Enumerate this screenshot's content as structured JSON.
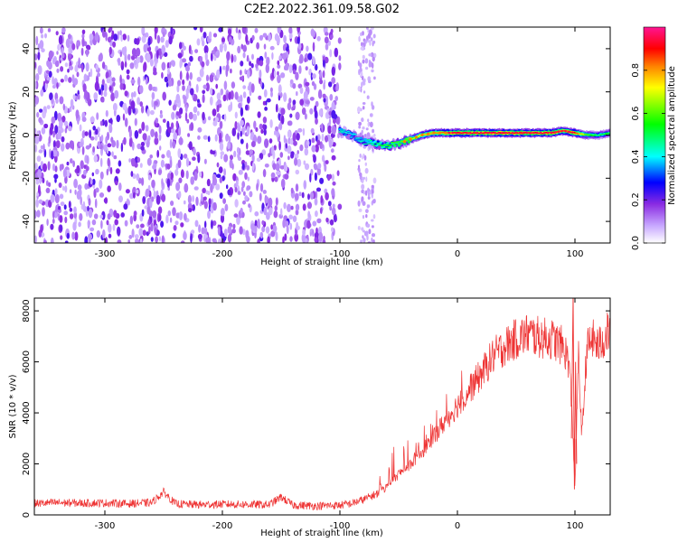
{
  "title": "C2E2.2022.361.09.58.G02",
  "chart_data": [
    {
      "type": "heatmap",
      "xlabel": "Height of straight line (km)",
      "ylabel": "Frequency (Hz)",
      "xlim": [
        -360,
        130
      ],
      "ylim": [
        -50,
        50
      ],
      "xticks": [
        -300,
        -200,
        -100,
        0,
        100
      ],
      "yticks": [
        -40,
        -20,
        0,
        20,
        40
      ],
      "colorbar": {
        "label": "Normalized spectral amplitude",
        "range": [
          0.0,
          1.0
        ],
        "ticks": [
          0.0,
          0.2,
          0.4,
          0.6,
          0.8
        ],
        "colormap": [
          "#ffffff",
          "#c8a8ff",
          "#8a2be2",
          "#0000ff",
          "#00ffff",
          "#00ff00",
          "#ffff00",
          "#ff8000",
          "#ff0000",
          "#ff1493"
        ]
      },
      "noise_region_x": [
        -360,
        -100
      ],
      "noise_gap_x": [
        -100,
        -70
      ],
      "signal_track": {
        "x": [
          -100,
          -90,
          -80,
          -70,
          -60,
          -50,
          -40,
          -30,
          -20,
          -10,
          0,
          20,
          40,
          60,
          80,
          90,
          100,
          110,
          120,
          130
        ],
        "frequency": [
          2,
          0,
          -3,
          -4,
          -5,
          -4,
          -2,
          0,
          1,
          1,
          1,
          1,
          1,
          1,
          1,
          2,
          1,
          0,
          0,
          1
        ],
        "amplitude": [
          0.45,
          0.4,
          0.45,
          0.5,
          0.55,
          0.6,
          0.65,
          0.75,
          0.8,
          0.85,
          0.9,
          0.9,
          0.9,
          0.9,
          0.9,
          0.85,
          0.9,
          0.6,
          0.5,
          0.55
        ]
      }
    },
    {
      "type": "line",
      "xlabel": "Height of straight line (km)",
      "ylabel": "SNR (10 * v/v)",
      "xlim": [
        -360,
        130
      ],
      "ylim": [
        0,
        8500
      ],
      "xticks": [
        -300,
        -200,
        -100,
        0,
        100
      ],
      "yticks": [
        0,
        2000,
        4000,
        6000,
        8000
      ],
      "series": [
        {
          "color": "#ee3333",
          "x": [
            -360,
            -340,
            -320,
            -300,
            -280,
            -260,
            -250,
            -240,
            -220,
            -200,
            -180,
            -160,
            -150,
            -140,
            -120,
            -100,
            -90,
            -80,
            -70,
            -60,
            -50,
            -40,
            -30,
            -20,
            -10,
            0,
            10,
            20,
            30,
            40,
            50,
            60,
            70,
            80,
            90,
            95,
            98,
            100,
            103,
            106,
            110,
            115,
            120,
            125,
            130
          ],
          "y": [
            450,
            480,
            460,
            470,
            440,
            480,
            900,
            430,
            400,
            420,
            410,
            400,
            700,
            380,
            350,
            380,
            450,
            600,
            800,
            1100,
            1600,
            2000,
            2500,
            3100,
            3700,
            4300,
            4900,
            5500,
            6200,
            6600,
            6900,
            7100,
            6950,
            6900,
            6600,
            6000,
            3500,
            1000,
            6200,
            3000,
            6500,
            6900,
            6600,
            6900,
            7300
          ]
        }
      ]
    }
  ]
}
